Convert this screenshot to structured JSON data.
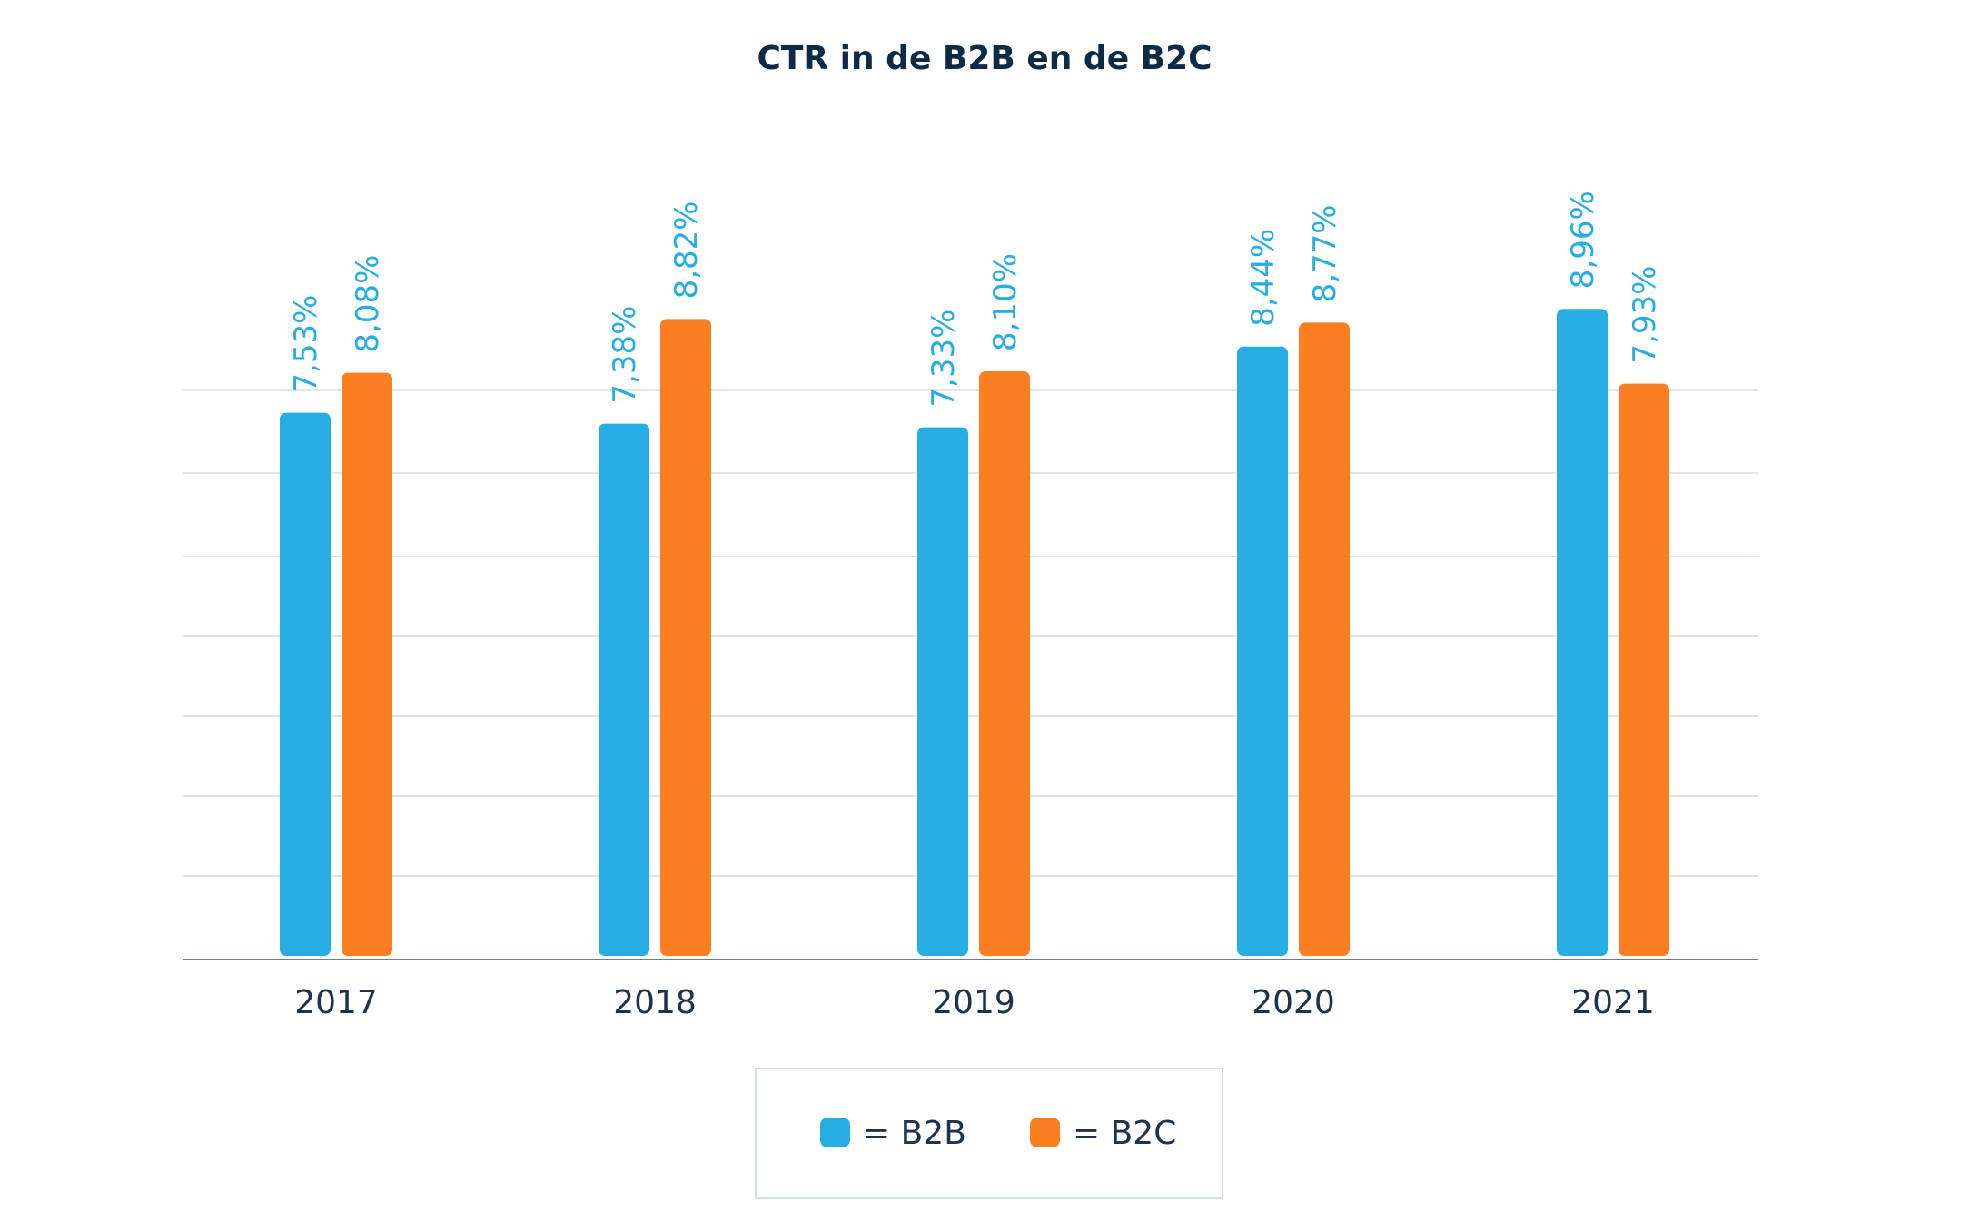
{
  "chart_data": {
    "type": "bar",
    "title": "CTR in de B2B en de B2C",
    "categories": [
      "2017",
      "2018",
      "2019",
      "2020",
      "2021"
    ],
    "series": [
      {
        "name": "B2B",
        "legend_label": "= B2B",
        "color": "#25ade4",
        "values": [
          7.53,
          7.38,
          7.33,
          8.44,
          8.96
        ],
        "labels": [
          "7,53%",
          "7,38%",
          "7,33%",
          "8,44%",
          "8,96%"
        ]
      },
      {
        "name": "B2C",
        "legend_label": "= B2C",
        "color": "#fb7f20",
        "values": [
          8.08,
          8.82,
          8.1,
          8.77,
          7.93
        ],
        "labels": [
          "8,08%",
          "8,82%",
          "8,10%",
          "8,77%",
          "7,93%"
        ]
      }
    ],
    "ylim": [
      0,
      12
    ],
    "grid": true,
    "legend_position": "bottom-center",
    "colors": {
      "grid": "#dde8ec",
      "axis": "#6d7d8a",
      "label_text": "#25ade4",
      "legend_border": "#cfe0e6"
    }
  }
}
